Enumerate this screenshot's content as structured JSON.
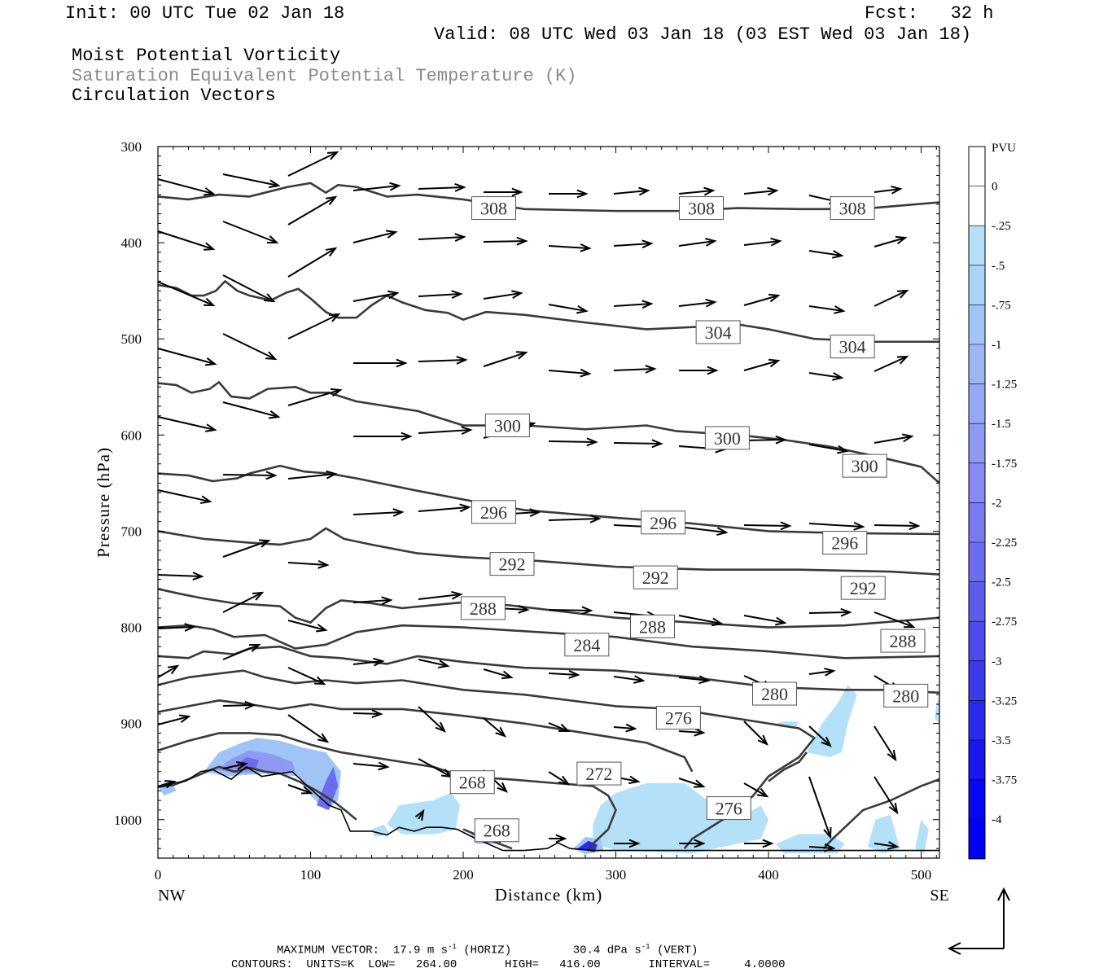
{
  "header": {
    "init": "Init: 00 UTC Tue 02 Jan 18",
    "fcst": "Fcst:   32 h",
    "valid": "Valid: 08 UTC Wed 03 Jan 18 (03 EST Wed 03 Jan 18)",
    "line1": "Moist Potential Vorticity",
    "line2": "Saturation Equivalent Potential Temperature (K)",
    "line3": "Circulation Vectors",
    "line2_color": "#8a8a8a"
  },
  "footer": {
    "max_vector_label": "MAXIMUM VECTOR:",
    "horiz_value": "17.9 m s",
    "horiz_unit": "(HORIZ)",
    "vert_value": "30.4 dPa s",
    "vert_unit": "(VERT)",
    "exponent": "-1",
    "contours": "CONTOURS:  UNITS=K  LOW=   264.00       HIGH=   416.00       INTERVAL=     4.0000"
  },
  "chart_data": {
    "type": "cross-section",
    "xlabel": "Distance (km)",
    "ylabel": "Pressure (hPa)",
    "xlim": [
      0,
      512
    ],
    "ylim": [
      1040,
      300
    ],
    "x_ticks": [
      "0",
      "100",
      "200",
      "300",
      "400",
      "500"
    ],
    "y_ticks": [
      "300",
      "400",
      "500",
      "600",
      "700",
      "800",
      "900",
      "1000"
    ],
    "x_endpoints": {
      "left": "NW",
      "right": "SE"
    },
    "colorbar": {
      "title": "PVU",
      "labels": [
        "0",
        "-.25",
        "-.5",
        "-.75",
        "-1",
        "-1.25",
        "-1.5",
        "-1.75",
        "-2",
        "-2.25",
        "-2.5",
        "-2.75",
        "-3",
        "-3.25",
        "-3.5",
        "-3.75",
        "-4"
      ],
      "colors": [
        "#ffffff",
        "#ffffff",
        "#b4e1f7",
        "#a9d4f7",
        "#a0c4f5",
        "#9cb6f4",
        "#96a8f3",
        "#8e9af2",
        "#868af2",
        "#7a7af0",
        "#6c6cee",
        "#5c5ced",
        "#4c4ceb",
        "#3b3beb",
        "#2a2aec",
        "#1818ee",
        "#0808f0",
        "#0000f5"
      ]
    },
    "contour_labels": [
      {
        "text": "308",
        "x": 220,
        "p": 364
      },
      {
        "text": "308",
        "x": 356,
        "p": 364
      },
      {
        "text": "308",
        "x": 455,
        "p": 364
      },
      {
        "text": "304",
        "x": 367,
        "p": 493
      },
      {
        "text": "304",
        "x": 455,
        "p": 508
      },
      {
        "text": "300",
        "x": 229,
        "p": 590
      },
      {
        "text": "300",
        "x": 373,
        "p": 603
      },
      {
        "text": "300",
        "x": 463,
        "p": 632
      },
      {
        "text": "296",
        "x": 220,
        "p": 680
      },
      {
        "text": "296",
        "x": 331,
        "p": 691
      },
      {
        "text": "296",
        "x": 450,
        "p": 712
      },
      {
        "text": "292",
        "x": 232,
        "p": 734
      },
      {
        "text": "292",
        "x": 326,
        "p": 748
      },
      {
        "text": "292",
        "x": 462,
        "p": 759
      },
      {
        "text": "288",
        "x": 213,
        "p": 780
      },
      {
        "text": "288",
        "x": 324,
        "p": 799
      },
      {
        "text": "288",
        "x": 488,
        "p": 814
      },
      {
        "text": "284",
        "x": 281,
        "p": 818
      },
      {
        "text": "280",
        "x": 404,
        "p": 869
      },
      {
        "text": "280",
        "x": 490,
        "p": 871
      },
      {
        "text": "276",
        "x": 341,
        "p": 894
      },
      {
        "text": "276",
        "x": 374,
        "p": 988
      },
      {
        "text": "272",
        "x": 289,
        "p": 952
      },
      {
        "text": "268",
        "x": 206,
        "p": 961
      },
      {
        "text": "268",
        "x": 222,
        "p": 1011
      }
    ],
    "isentropes_k": [
      308,
      304,
      300,
      296,
      292,
      288,
      284,
      280,
      276,
      272,
      268
    ]
  }
}
